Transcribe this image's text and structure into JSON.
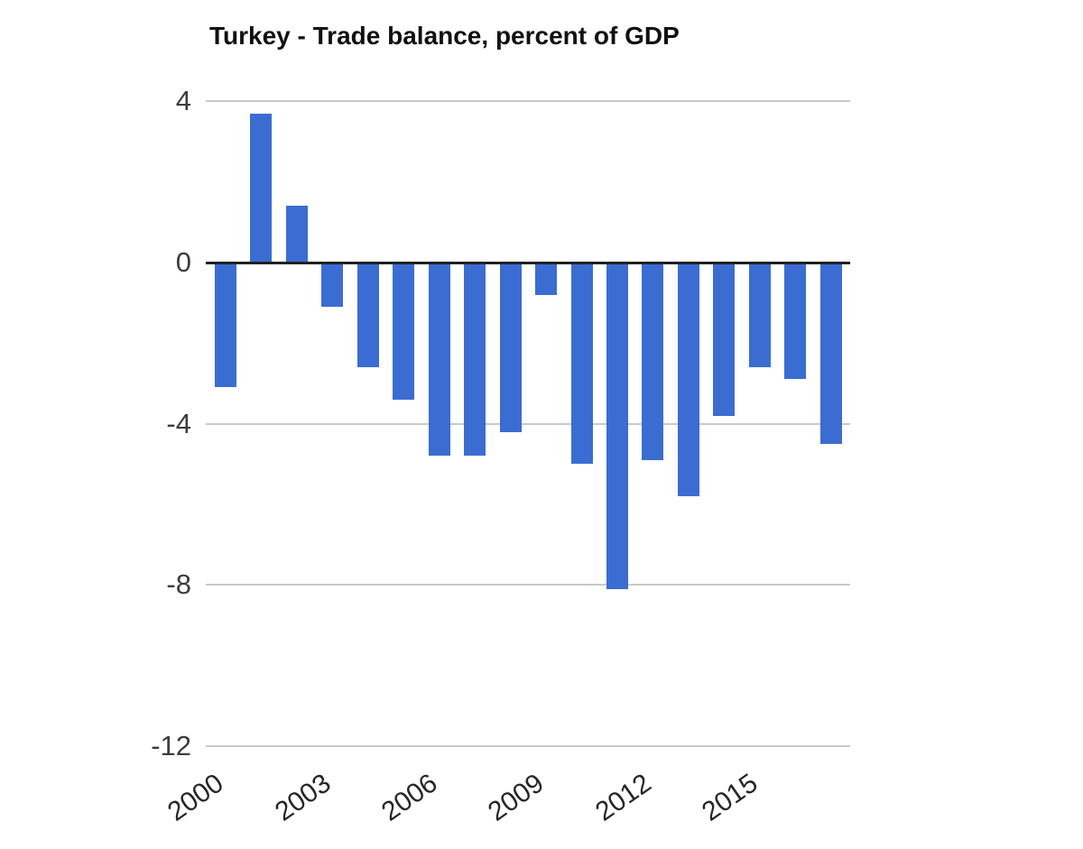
{
  "page": {
    "background": "#ffffff"
  },
  "chart_data": {
    "type": "bar",
    "title": "Turkey - Trade balance, percent of GDP",
    "xlabel": "",
    "ylabel": "",
    "categories": [
      "2000",
      "2001",
      "2002",
      "2003",
      "2004",
      "2005",
      "2006",
      "2007",
      "2008",
      "2009",
      "2010",
      "2011",
      "2012",
      "2013",
      "2014",
      "2015",
      "2016",
      "2017"
    ],
    "values": [
      -3.1,
      3.7,
      1.4,
      -1.1,
      -2.6,
      -3.4,
      -4.8,
      -4.8,
      -4.2,
      -0.8,
      -5.0,
      -8.1,
      -4.9,
      -5.8,
      -3.8,
      -2.6,
      -2.9,
      -4.5
    ],
    "unit": "percent of GDP",
    "ylim": [
      -12.6,
      4.6
    ],
    "y_ticks": [
      4,
      0,
      -4,
      -8,
      -12
    ],
    "x_tick_labels": [
      "2000",
      "2003",
      "2006",
      "2009",
      "2012",
      "2015"
    ],
    "x_tick_every": 3,
    "x_label_rotation_deg": -35,
    "grid": true,
    "legend": "none",
    "colors": {
      "bar": "#3b6cd1",
      "zero_axis_line": "#212121",
      "gridline": "#c9c9c9",
      "y_tick_label": "#3d3d3d",
      "x_tick_label": "#262626",
      "title": "#111111"
    }
  }
}
